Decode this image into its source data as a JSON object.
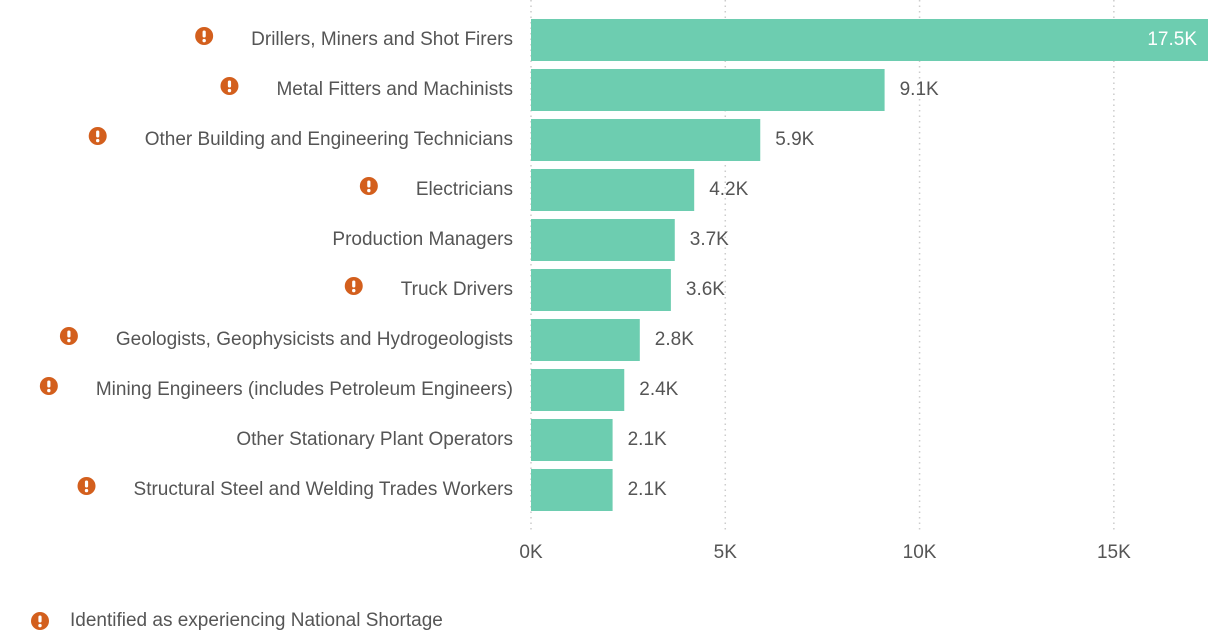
{
  "chart_data": {
    "type": "barh",
    "categories": [
      "Drillers, Miners and Shot Firers",
      "Metal Fitters and Machinists",
      "Other Building and Engineering Technicians",
      "Electricians",
      "Production Managers",
      "Truck Drivers",
      "Geologists, Geophysicists and Hydrogeologists",
      "Mining Engineers (includes Petroleum Engineers)",
      "Other Stationary Plant Operators",
      "Structural Steel and Welding Trades Workers"
    ],
    "values": [
      17500,
      9100,
      5900,
      4200,
      3700,
      3600,
      2800,
      2400,
      2100,
      2100
    ],
    "value_labels": [
      "17.5K",
      "9.1K",
      "5.9K",
      "4.2K",
      "3.7K",
      "3.6K",
      "2.8K",
      "2.4K",
      "2.1K",
      "2.1K"
    ],
    "shortage": [
      true,
      true,
      true,
      true,
      false,
      true,
      true,
      true,
      false,
      true
    ],
    "color": "#6dcdb0",
    "shortage_color": "#d35f1d",
    "xlim": [
      0,
      17500
    ],
    "xticks": [
      {
        "value": 0,
        "label": "0K"
      },
      {
        "value": 5000,
        "label": "5K"
      },
      {
        "value": 10000,
        "label": "10K"
      },
      {
        "value": 15000,
        "label": "15K"
      }
    ],
    "grid": true,
    "legend": "Identified as experiencing National Shortage"
  }
}
